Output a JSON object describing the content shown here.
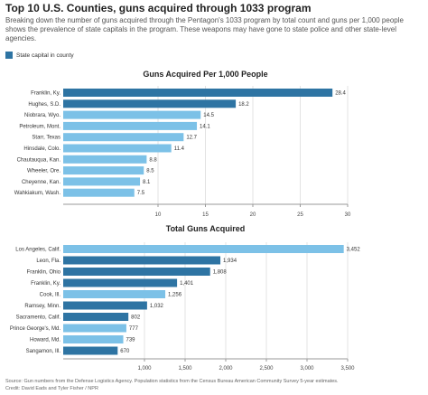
{
  "header": {
    "title": "Top 10 U.S. Counties, guns acquired through 1033 program",
    "description": "Breaking down the number of guns acquired through the Pentagon's 1033 program by total count and guns per 1,000 people shows the prevalence of state capitals in the program. These weapons may have gone to state police and other state-level agencies."
  },
  "legend": {
    "label": "State capital in county",
    "color": "#2e74a3"
  },
  "colors": {
    "capital": "#2e74a3",
    "other": "#7cc1e7",
    "axis": "#999999",
    "grid": "#e3e3e3"
  },
  "footer": {
    "source": "Source: Gun numbers from the Defense Logistics Agency. Population statistics from the Census Bureau American Community Survey 5-year estimates.",
    "credit": "Credit: David Eads and Tyler Fisher / NPR"
  },
  "chart_data": [
    {
      "type": "bar",
      "orientation": "horizontal",
      "title": "Guns Acquired Per 1,000 People",
      "categories": [
        "Franklin, Ky.",
        "Hughes, S.D.",
        "Niobrara, Wyo.",
        "Petroleum, Mont.",
        "Starr, Texas",
        "Hinsdale, Colo.",
        "Chautauqua, Kan.",
        "Wheeler, Ore.",
        "Cheyenne, Kan.",
        "Wahkiakum, Wash."
      ],
      "values": [
        28.4,
        18.2,
        14.5,
        14.1,
        12.7,
        11.4,
        8.8,
        8.5,
        8.1,
        7.5
      ],
      "value_labels": [
        "28.4",
        "18.2",
        "14.5",
        "14.1",
        "12.7",
        "11.4",
        "8.8",
        "8.5",
        "8.1",
        "7.5"
      ],
      "state_capital": [
        true,
        true,
        false,
        false,
        false,
        false,
        false,
        false,
        false,
        false
      ],
      "xlim": [
        0,
        30
      ],
      "xticks": [
        10,
        15,
        20,
        25,
        30
      ],
      "xtick_labels": [
        "10",
        "15",
        "20",
        "25",
        "30"
      ],
      "grid": true
    },
    {
      "type": "bar",
      "orientation": "horizontal",
      "title": "Total Guns Acquired",
      "categories": [
        "Los Angeles, Calif.",
        "Leon, Fla.",
        "Franklin, Ohio",
        "Franklin, Ky.",
        "Cook, Ill.",
        "Ramsey, Minn.",
        "Sacramento, Calif.",
        "Prince George's, Md.",
        "Howard, Md.",
        "Sangamon, Ill."
      ],
      "values": [
        3452,
        1934,
        1808,
        1401,
        1256,
        1032,
        802,
        777,
        739,
        670
      ],
      "value_labels": [
        "3,452",
        "1,934",
        "1,808",
        "1,401",
        "1,256",
        "1,032",
        "802",
        "777",
        "739",
        "670"
      ],
      "state_capital": [
        false,
        true,
        true,
        true,
        false,
        true,
        true,
        false,
        false,
        true
      ],
      "xlim": [
        0,
        3500
      ],
      "xticks": [
        1000,
        1500,
        2000,
        2500,
        3000,
        3500
      ],
      "xtick_labels": [
        "1,000",
        "1,500",
        "2,000",
        "2,500",
        "3,000",
        "3,500"
      ],
      "grid": true
    }
  ]
}
